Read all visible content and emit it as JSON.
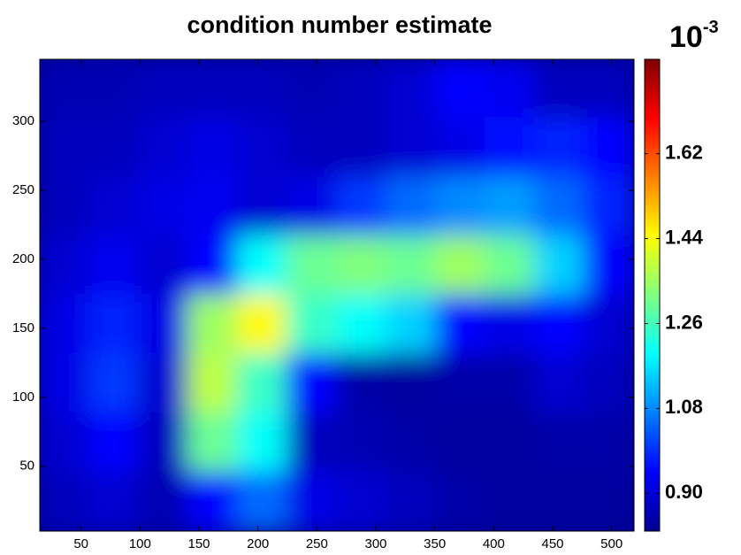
{
  "chart_data": {
    "type": "heatmap",
    "title": "condition number estimate",
    "xlim": [
      15,
      519
    ],
    "ylim": [
      3,
      345
    ],
    "xticks": [
      50,
      100,
      150,
      200,
      250,
      300,
      350,
      400,
      450,
      500
    ],
    "yticks": [
      50,
      100,
      150,
      200,
      250,
      300
    ],
    "colormap": "jet",
    "clim": [
      0.82,
      1.82
    ],
    "cticks": [
      {
        "value": 0.9,
        "label": "0.90"
      },
      1.08,
      1.26,
      1.44,
      1.62
    ],
    "colorbar_exponent": {
      "base": "10",
      "power": "-3"
    },
    "values": [
      [
        0.87,
        0.87,
        0.88,
        0.88,
        0.88,
        0.87,
        0.88,
        0.9,
        0.95,
        0.93,
        0.88,
        0.88
      ],
      [
        0.88,
        0.88,
        0.9,
        0.92,
        0.9,
        0.88,
        0.88,
        0.9,
        0.92,
        0.96,
        0.98,
        0.95
      ],
      [
        0.88,
        0.9,
        0.92,
        0.93,
        0.9,
        0.92,
        1.0,
        1.05,
        1.08,
        1.1,
        1.05,
        0.98
      ],
      [
        0.9,
        0.93,
        0.9,
        0.95,
        1.2,
        1.3,
        1.32,
        1.3,
        1.35,
        1.3,
        1.15,
        0.95
      ],
      [
        0.92,
        0.98,
        0.92,
        1.35,
        1.45,
        1.25,
        1.2,
        1.15,
        0.95,
        0.92,
        0.95,
        0.9
      ],
      [
        0.92,
        1.0,
        0.9,
        1.38,
        1.25,
        0.95,
        0.86,
        0.85,
        0.86,
        0.86,
        0.9,
        0.88
      ],
      [
        0.9,
        0.95,
        0.88,
        1.3,
        1.2,
        0.88,
        0.87,
        0.86,
        0.85,
        0.85,
        0.86,
        0.86
      ],
      [
        0.88,
        0.9,
        0.87,
        0.95,
        1.05,
        0.92,
        0.9,
        0.88,
        0.86,
        0.85,
        0.85,
        0.85
      ]
    ]
  }
}
